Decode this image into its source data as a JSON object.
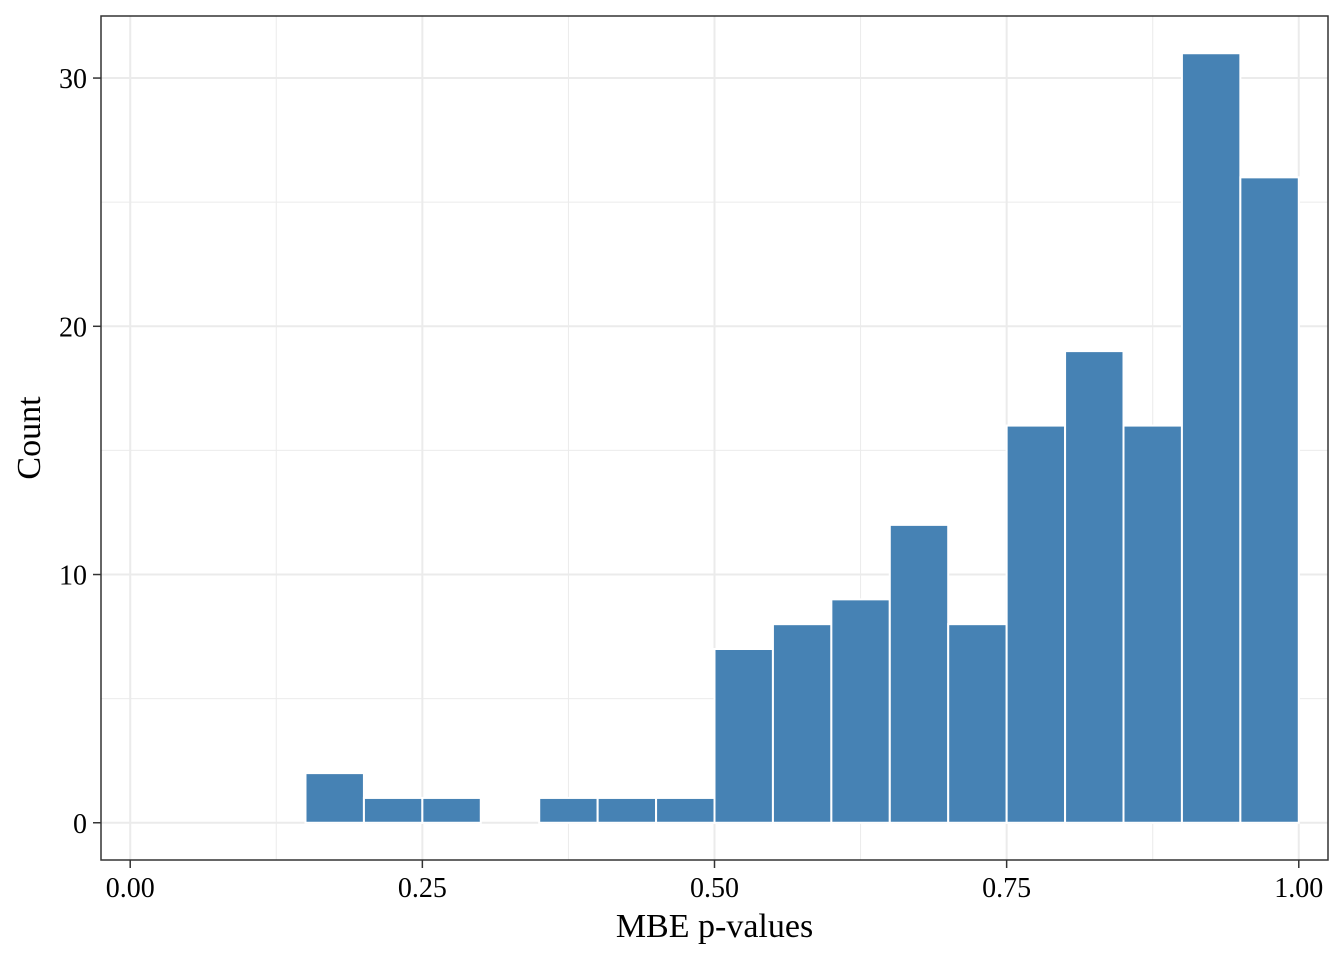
{
  "chart_data": {
    "type": "bar",
    "subtype": "histogram",
    "xlabel": "MBE p-values",
    "ylabel": "Count",
    "xlim": [
      -0.025,
      1.025
    ],
    "ylim": [
      -1.5,
      32.5
    ],
    "x_ticks": [
      0.0,
      0.25,
      0.5,
      0.75,
      1.0
    ],
    "x_tick_labels": [
      "0.00",
      "0.25",
      "0.50",
      "0.75",
      "1.00"
    ],
    "y_ticks": [
      0,
      10,
      20,
      30
    ],
    "y_tick_labels": [
      "0",
      "10",
      "20",
      "30"
    ],
    "bin_width": 0.05,
    "bins": [
      {
        "x0": 0.15,
        "x1": 0.2,
        "count": 2
      },
      {
        "x0": 0.2,
        "x1": 0.25,
        "count": 1
      },
      {
        "x0": 0.25,
        "x1": 0.3,
        "count": 1
      },
      {
        "x0": 0.35,
        "x1": 0.4,
        "count": 1
      },
      {
        "x0": 0.4,
        "x1": 0.45,
        "count": 1
      },
      {
        "x0": 0.45,
        "x1": 0.5,
        "count": 1
      },
      {
        "x0": 0.5,
        "x1": 0.55,
        "count": 7
      },
      {
        "x0": 0.55,
        "x1": 0.6,
        "count": 8
      },
      {
        "x0": 0.6,
        "x1": 0.65,
        "count": 9
      },
      {
        "x0": 0.65,
        "x1": 0.7,
        "count": 12
      },
      {
        "x0": 0.7,
        "x1": 0.75,
        "count": 8
      },
      {
        "x0": 0.75,
        "x1": 0.8,
        "count": 16
      },
      {
        "x0": 0.8,
        "x1": 0.85,
        "count": 19
      },
      {
        "x0": 0.85,
        "x1": 0.9,
        "count": 16
      },
      {
        "x0": 0.9,
        "x1": 0.95,
        "count": 31
      },
      {
        "x0": 0.95,
        "x1": 1.0,
        "count": 26
      }
    ],
    "grid": true,
    "bar_color": "#4682b4",
    "bar_edge_color": "#ffffff",
    "grid_color": "#ebebeb",
    "panel_border_color": "#333333"
  }
}
